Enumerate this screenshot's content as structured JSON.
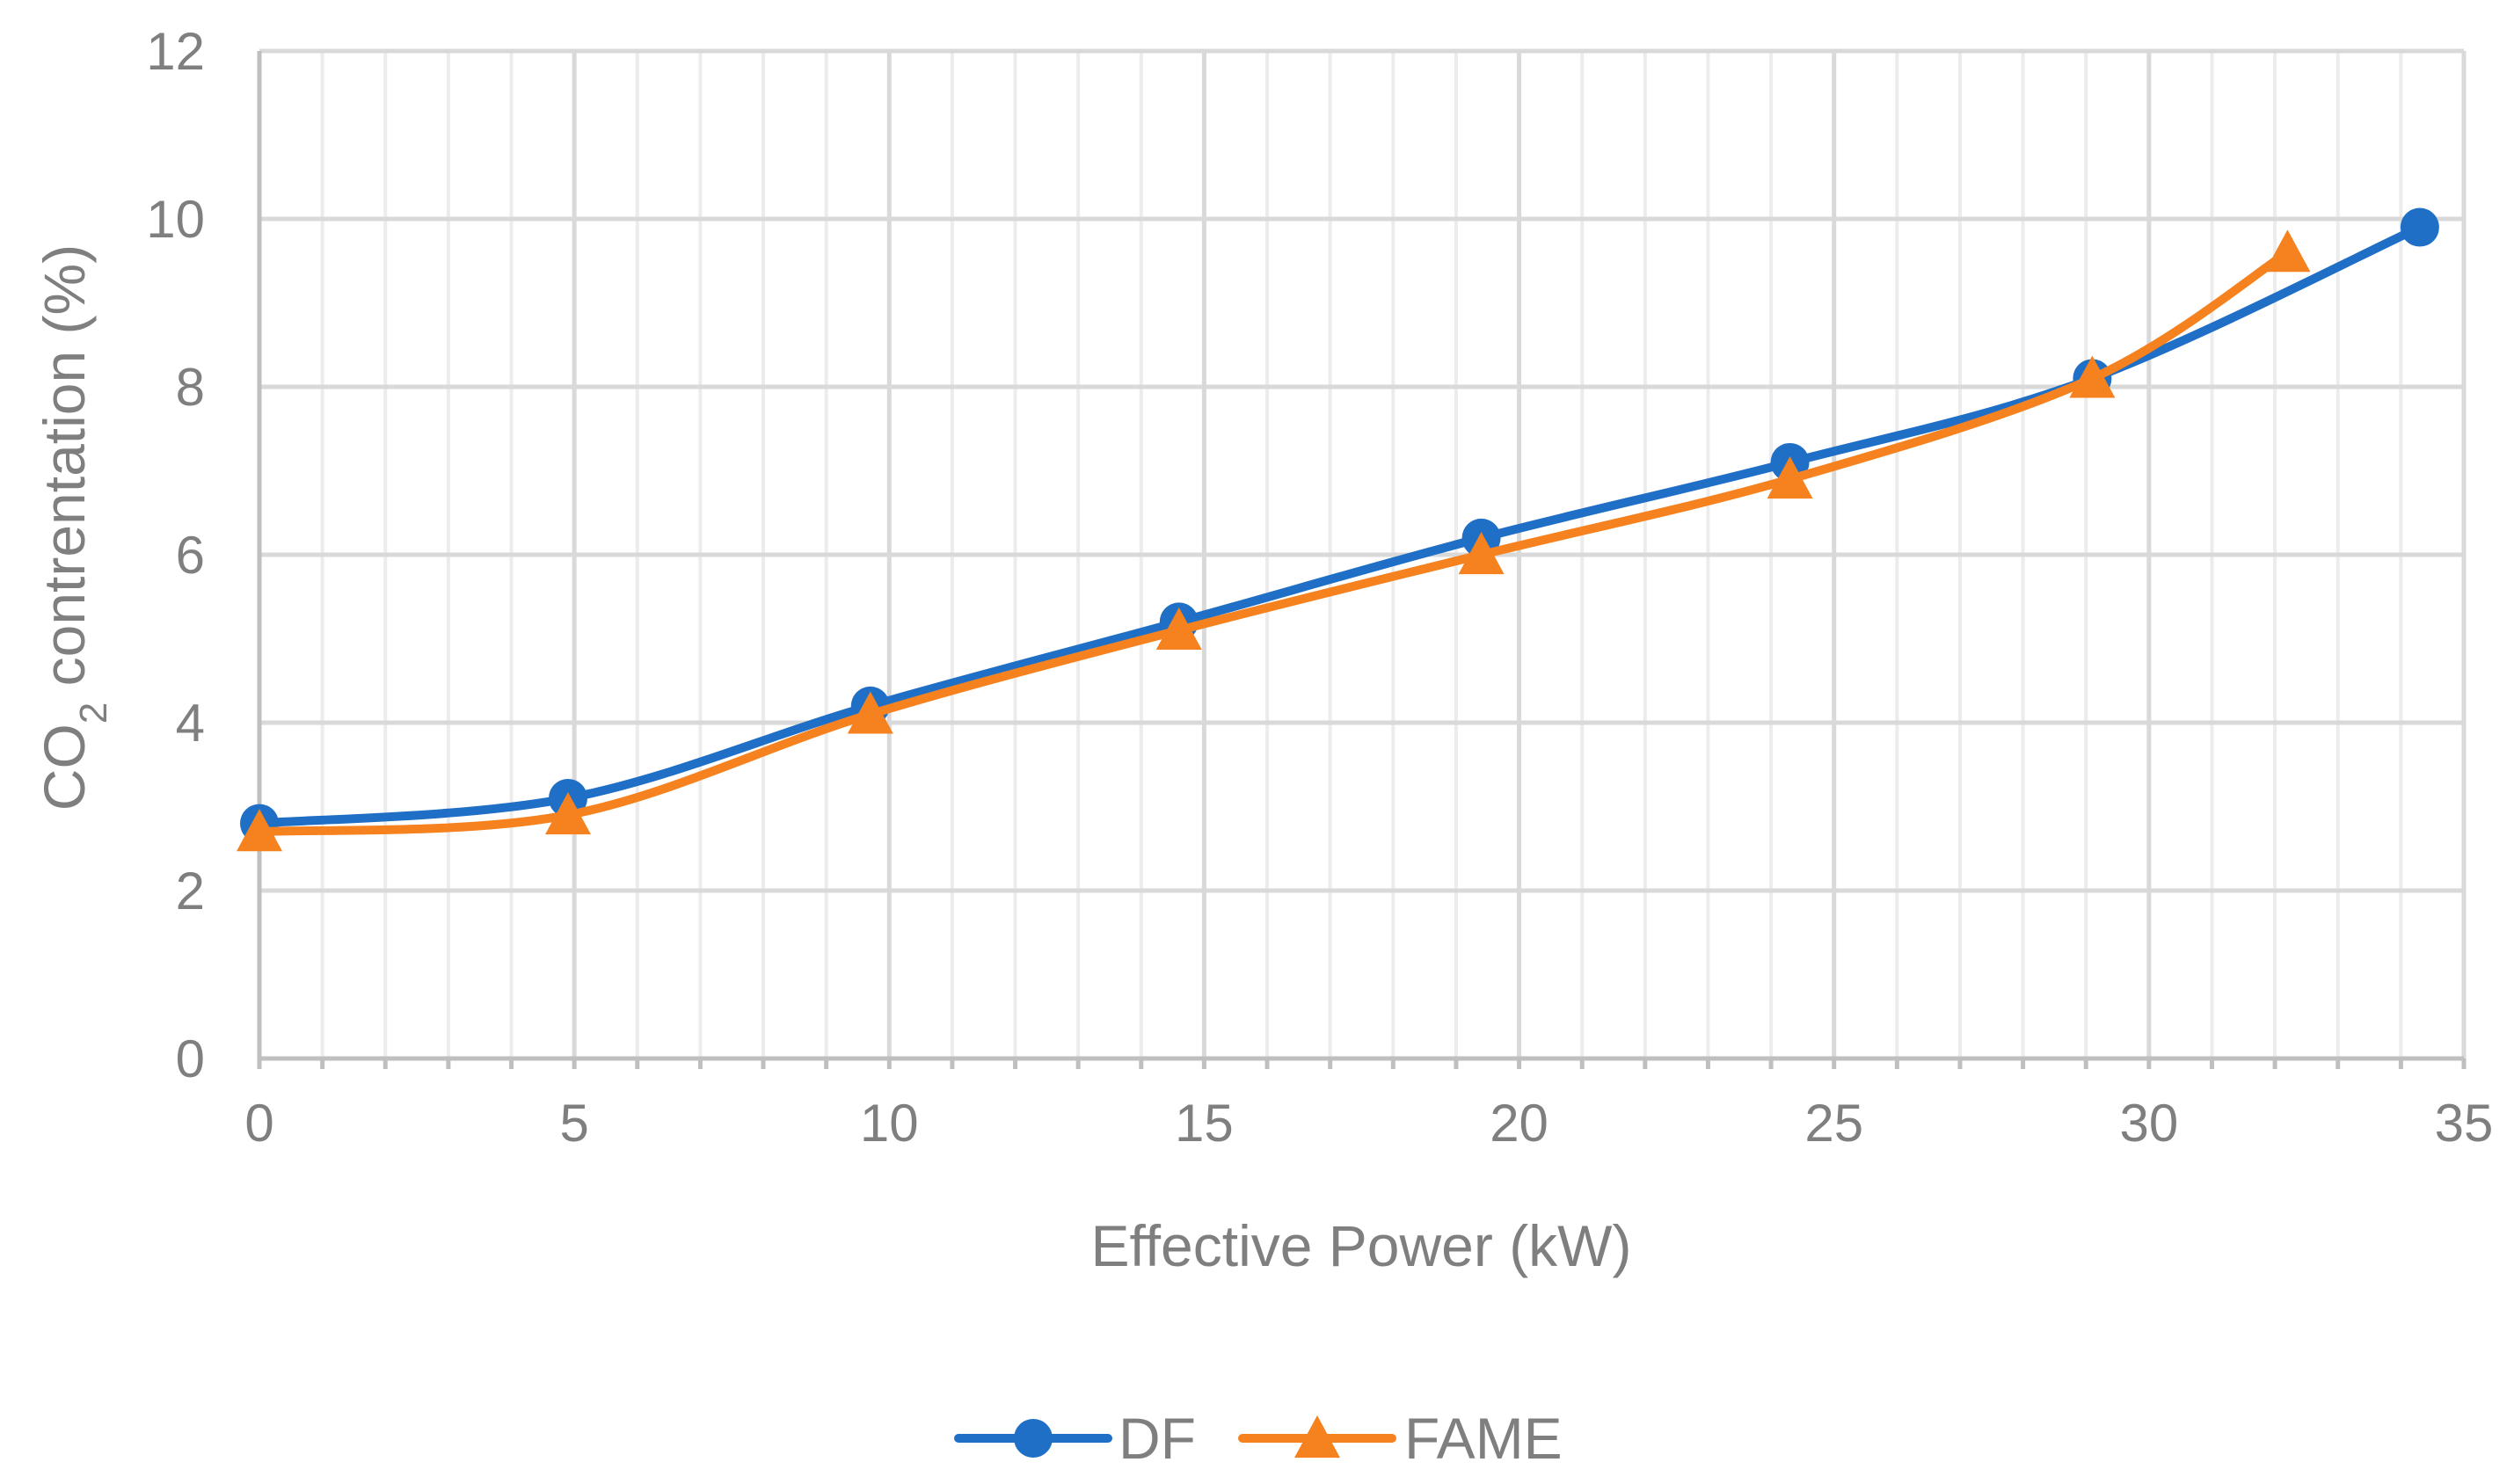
{
  "chart_data": {
    "type": "line",
    "title": "",
    "xlabel": "Effective Power (kW)",
    "ylabel_parts": [
      "CO",
      "2",
      " contrentation (%)"
    ],
    "xlim": [
      0,
      35
    ],
    "ylim": [
      0,
      12
    ],
    "x_major_step": 5,
    "x_minor_step": 1,
    "y_major_step": 2,
    "grid": true,
    "legend_position": "bottom",
    "series": [
      {
        "name": "DF",
        "color": "#1f6fc6",
        "marker": "circle",
        "x": [
          0,
          4.9,
          9.7,
          14.6,
          19.4,
          24.3,
          29.1,
          34.3
        ],
        "y": [
          2.8,
          3.1,
          4.2,
          5.2,
          6.2,
          7.1,
          8.1,
          9.9
        ]
      },
      {
        "name": "FAME",
        "color": "#f5821f",
        "marker": "triangle",
        "x": [
          0,
          4.9,
          9.7,
          14.6,
          19.4,
          24.3,
          29.1,
          32.2
        ],
        "y": [
          2.7,
          2.9,
          4.1,
          5.1,
          6.0,
          6.9,
          8.1,
          9.6
        ]
      }
    ]
  }
}
